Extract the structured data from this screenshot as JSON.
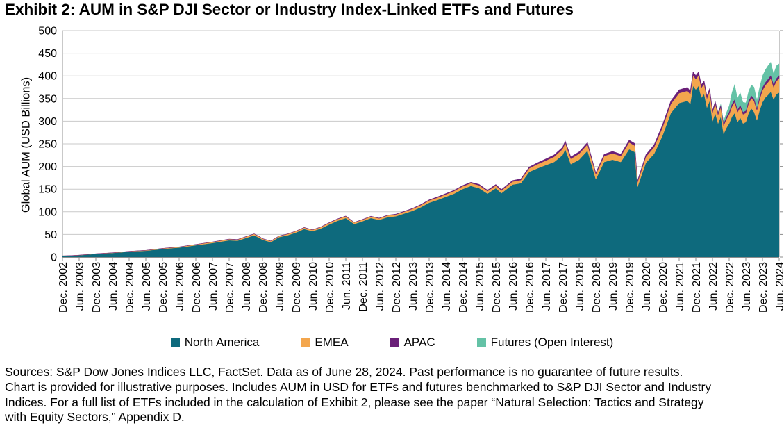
{
  "header": {
    "title": "Exhibit 2: AUM in S&P DJI Sector or Industry Index-Linked ETFs and Futures"
  },
  "chart_data": {
    "type": "area",
    "stacked": true,
    "title": "Exhibit 2: AUM in S&P DJI Sector or Industry Index-Linked ETFs and Futures",
    "xlabel": "",
    "ylabel": "Global AUM (USD Billions)",
    "ylim": [
      0,
      500
    ],
    "y_ticks": [
      0,
      50,
      100,
      150,
      200,
      250,
      300,
      350,
      400,
      450,
      500
    ],
    "grid": "horizontal",
    "legend_position": "bottom",
    "x_unit": "month index from Dec. 2002 (one unit = 1 month), labels every 6 months",
    "x_range_months": [
      0,
      258
    ],
    "x_tick_labels": [
      "Dec. 2002",
      "Jun. 2003",
      "Dec. 2003",
      "Jun. 2004",
      "Dec. 2004",
      "Jun. 2005",
      "Dec. 2005",
      "Jun. 2006",
      "Dec. 2006",
      "Jun. 2007",
      "Dec. 2007",
      "Jun. 2008",
      "Dec. 2008",
      "Jun. 2009",
      "Dec. 2009",
      "Jun. 2010",
      "Dec. 2010",
      "Jun. 2011",
      "Dec. 2011",
      "Jun. 2012",
      "Dec. 2012",
      "Jun. 2013",
      "Dec. 2013",
      "Jun. 2014",
      "Dec. 2014",
      "Jun. 2015",
      "Dec. 2015",
      "Jun. 2016",
      "Dec. 2016",
      "Jun. 2017",
      "Dec. 2017",
      "Jun. 2018",
      "Dec. 2018",
      "Jun. 2019",
      "Dec. 2019",
      "Jun. 2020",
      "Dec. 2020",
      "Jun. 2021",
      "Dec. 2021",
      "Jun. 2022",
      "Dec. 2022",
      "Jun. 2023",
      "Dec. 2023",
      "Jun. 2024"
    ],
    "series": [
      {
        "name": "North America",
        "color": "#0E6A7D"
      },
      {
        "name": "EMEA",
        "color": "#F3A64D"
      },
      {
        "name": "APAC",
        "color": "#6A1F78"
      },
      {
        "name": "Futures (Open Interest)",
        "color": "#64C2A6"
      }
    ],
    "points_format": [
      "month_index",
      "north_america",
      "emea",
      "apac",
      "futures_open_interest"
    ],
    "points": [
      [
        0,
        2.5,
        0.2,
        0.1,
        0
      ],
      [
        3,
        3,
        0.2,
        0.1,
        0
      ],
      [
        6,
        4,
        0.3,
        0.1,
        0
      ],
      [
        9,
        5.5,
        0.3,
        0.1,
        0
      ],
      [
        12,
        7,
        0.4,
        0.1,
        0
      ],
      [
        15,
        8,
        0.5,
        0.1,
        0
      ],
      [
        18,
        9,
        0.5,
        0.1,
        0
      ],
      [
        21,
        10.5,
        0.6,
        0.1,
        0
      ],
      [
        24,
        12,
        0.7,
        0.2,
        0
      ],
      [
        27,
        13,
        0.8,
        0.2,
        0
      ],
      [
        30,
        14,
        0.9,
        0.2,
        0
      ],
      [
        33,
        16,
        1,
        0.2,
        0
      ],
      [
        36,
        18,
        1.2,
        0.2,
        0
      ],
      [
        39,
        19.5,
        1.3,
        0.2,
        0
      ],
      [
        42,
        21,
        1.4,
        0.3,
        0
      ],
      [
        45,
        23.5,
        1.6,
        0.3,
        0
      ],
      [
        48,
        26,
        1.8,
        0.3,
        0
      ],
      [
        51,
        28.5,
        2,
        0.3,
        0
      ],
      [
        54,
        31,
        2.2,
        0.4,
        0
      ],
      [
        57,
        34,
        2.4,
        0.4,
        0
      ],
      [
        60,
        37,
        2.5,
        0.4,
        0
      ],
      [
        63,
        36,
        2.5,
        0.4,
        0
      ],
      [
        66,
        42,
        3,
        0.4,
        0
      ],
      [
        69,
        48,
        3,
        0.5,
        0
      ],
      [
        71,
        42,
        2.8,
        0.4,
        0
      ],
      [
        72,
        38,
        2.5,
        0.4,
        0
      ],
      [
        75,
        33,
        2.3,
        0.4,
        0
      ],
      [
        78,
        44,
        2.5,
        0.4,
        0
      ],
      [
        81,
        48,
        2.8,
        0.5,
        0
      ],
      [
        84,
        54,
        3,
        0.5,
        0
      ],
      [
        87,
        62,
        3.2,
        0.5,
        0
      ],
      [
        90,
        57,
        3,
        0.5,
        0
      ],
      [
        93,
        63,
        3.2,
        0.6,
        0
      ],
      [
        96,
        72,
        3.5,
        0.7,
        0
      ],
      [
        99,
        80,
        3.8,
        0.7,
        0
      ],
      [
        102,
        86,
        4,
        0.8,
        0
      ],
      [
        105,
        73,
        3.2,
        0.7,
        0
      ],
      [
        108,
        79,
        3.5,
        0.8,
        0
      ],
      [
        111,
        86,
        3.6,
        0.8,
        0
      ],
      [
        114,
        82,
        3.5,
        0.8,
        0
      ],
      [
        117,
        88,
        3.8,
        0.9,
        0
      ],
      [
        120,
        90,
        4,
        1,
        0
      ],
      [
        123,
        96,
        4.2,
        1.1,
        0
      ],
      [
        126,
        102,
        4.5,
        1.2,
        0
      ],
      [
        129,
        110,
        4.8,
        1.3,
        0
      ],
      [
        132,
        120,
        5,
        1.5,
        0
      ],
      [
        135,
        126,
        5.2,
        1.7,
        0
      ],
      [
        138,
        133,
        5.5,
        1.8,
        0
      ],
      [
        141,
        140,
        5.8,
        1.9,
        0
      ],
      [
        144,
        150,
        6,
        2,
        0
      ],
      [
        147,
        157,
        6.2,
        2.2,
        0
      ],
      [
        150,
        152,
        6.5,
        2.2,
        0
      ],
      [
        153,
        140,
        5.5,
        2.3,
        0
      ],
      [
        156,
        152,
        6,
        2.5,
        0
      ],
      [
        158,
        141,
        5.8,
        2.4,
        0
      ],
      [
        162,
        160,
        6.5,
        2.6,
        0
      ],
      [
        165,
        163,
        7,
        2.8,
        0
      ],
      [
        168,
        188,
        8,
        3,
        0
      ],
      [
        171,
        196,
        9,
        3.5,
        0
      ],
      [
        174,
        203,
        10,
        3.8,
        0
      ],
      [
        177,
        210,
        11.5,
        4.2,
        0
      ],
      [
        180,
        225,
        13,
        4.5,
        0
      ],
      [
        181,
        238,
        14,
        4.8,
        0
      ],
      [
        183,
        205,
        12,
        4.5,
        0
      ],
      [
        186,
        215,
        13,
        4.5,
        0
      ],
      [
        189,
        235,
        14,
        4.6,
        0
      ],
      [
        192,
        172,
        11,
        3.5,
        0
      ],
      [
        195,
        210,
        13,
        4.2,
        0
      ],
      [
        198,
        215,
        14,
        4.5,
        0
      ],
      [
        201,
        210,
        13,
        4.5,
        0
      ],
      [
        204,
        238,
        15,
        5.5,
        0
      ],
      [
        206,
        232,
        14,
        5,
        0
      ],
      [
        207,
        155,
        10,
        4,
        0
      ],
      [
        210,
        208,
        13,
        5,
        0
      ],
      [
        213,
        228,
        15,
        5.5,
        0
      ],
      [
        216,
        268,
        18,
        6.5,
        0
      ],
      [
        219,
        318,
        20,
        7,
        0
      ],
      [
        222,
        340,
        22,
        7.5,
        0
      ],
      [
        225,
        345,
        22,
        7.8,
        0
      ],
      [
        226,
        338,
        21,
        7.5,
        0
      ],
      [
        227,
        378,
        23,
        8,
        0
      ],
      [
        228,
        370,
        23,
        8,
        0
      ],
      [
        229,
        378,
        23,
        8,
        0
      ],
      [
        230,
        352,
        22,
        7,
        0
      ],
      [
        231,
        360,
        22,
        7,
        0
      ],
      [
        232,
        330,
        20,
        6.5,
        0
      ],
      [
        233,
        345,
        21,
        6.5,
        0
      ],
      [
        234,
        300,
        19,
        5.5,
        0
      ],
      [
        235,
        318,
        20,
        6,
        0
      ],
      [
        236,
        295,
        19,
        5.5,
        1
      ],
      [
        237,
        310,
        20,
        5.5,
        3
      ],
      [
        238,
        272,
        18,
        5,
        6
      ],
      [
        239,
        285,
        19,
        5,
        10
      ],
      [
        240,
        295,
        20,
        5.5,
        14
      ],
      [
        241,
        310,
        22,
        6,
        26
      ],
      [
        242,
        318,
        24,
        6,
        34
      ],
      [
        243,
        298,
        22,
        5.5,
        26
      ],
      [
        244,
        308,
        22,
        5.5,
        28
      ],
      [
        245,
        295,
        20,
        5,
        22
      ],
      [
        246,
        298,
        20,
        5,
        18
      ],
      [
        247,
        318,
        21,
        5.5,
        22
      ],
      [
        248,
        328,
        23,
        5.5,
        24
      ],
      [
        249,
        320,
        24,
        5.5,
        26
      ],
      [
        250,
        302,
        22,
        5,
        18
      ],
      [
        251,
        325,
        24,
        6,
        22
      ],
      [
        252,
        342,
        26,
        6.5,
        26
      ],
      [
        253,
        352,
        27,
        6.5,
        28
      ],
      [
        254,
        358,
        28,
        7,
        30
      ],
      [
        255,
        365,
        29,
        7,
        30
      ],
      [
        256,
        348,
        27,
        6.5,
        24
      ],
      [
        257,
        360,
        28,
        6.5,
        28
      ],
      [
        258,
        363,
        32,
        6,
        26
      ]
    ],
    "layout": {
      "gridline_color": "#c9c9c9",
      "axis_color": "#8c8c8c",
      "border_color": "#c9c9c9"
    },
    "y_axis_title": "Global AUM (USD Billions)"
  },
  "footer": {
    "lines": [
      "Sources: S&P Dow Jones Indices LLC, FactSet. Data as of June 28, 2024. Past performance is no guarantee of future results.",
      "Chart is provided for illustrative purposes. Includes AUM in USD for ETFs and futures benchmarked to S&P DJI Sector and Industry",
      "Indices. For a full list of ETFs included in the calculation of Exhibit 2, please see the paper “Natural Selection: Tactics and Strategy",
      "with Equity Sectors,” Appendix D."
    ]
  }
}
